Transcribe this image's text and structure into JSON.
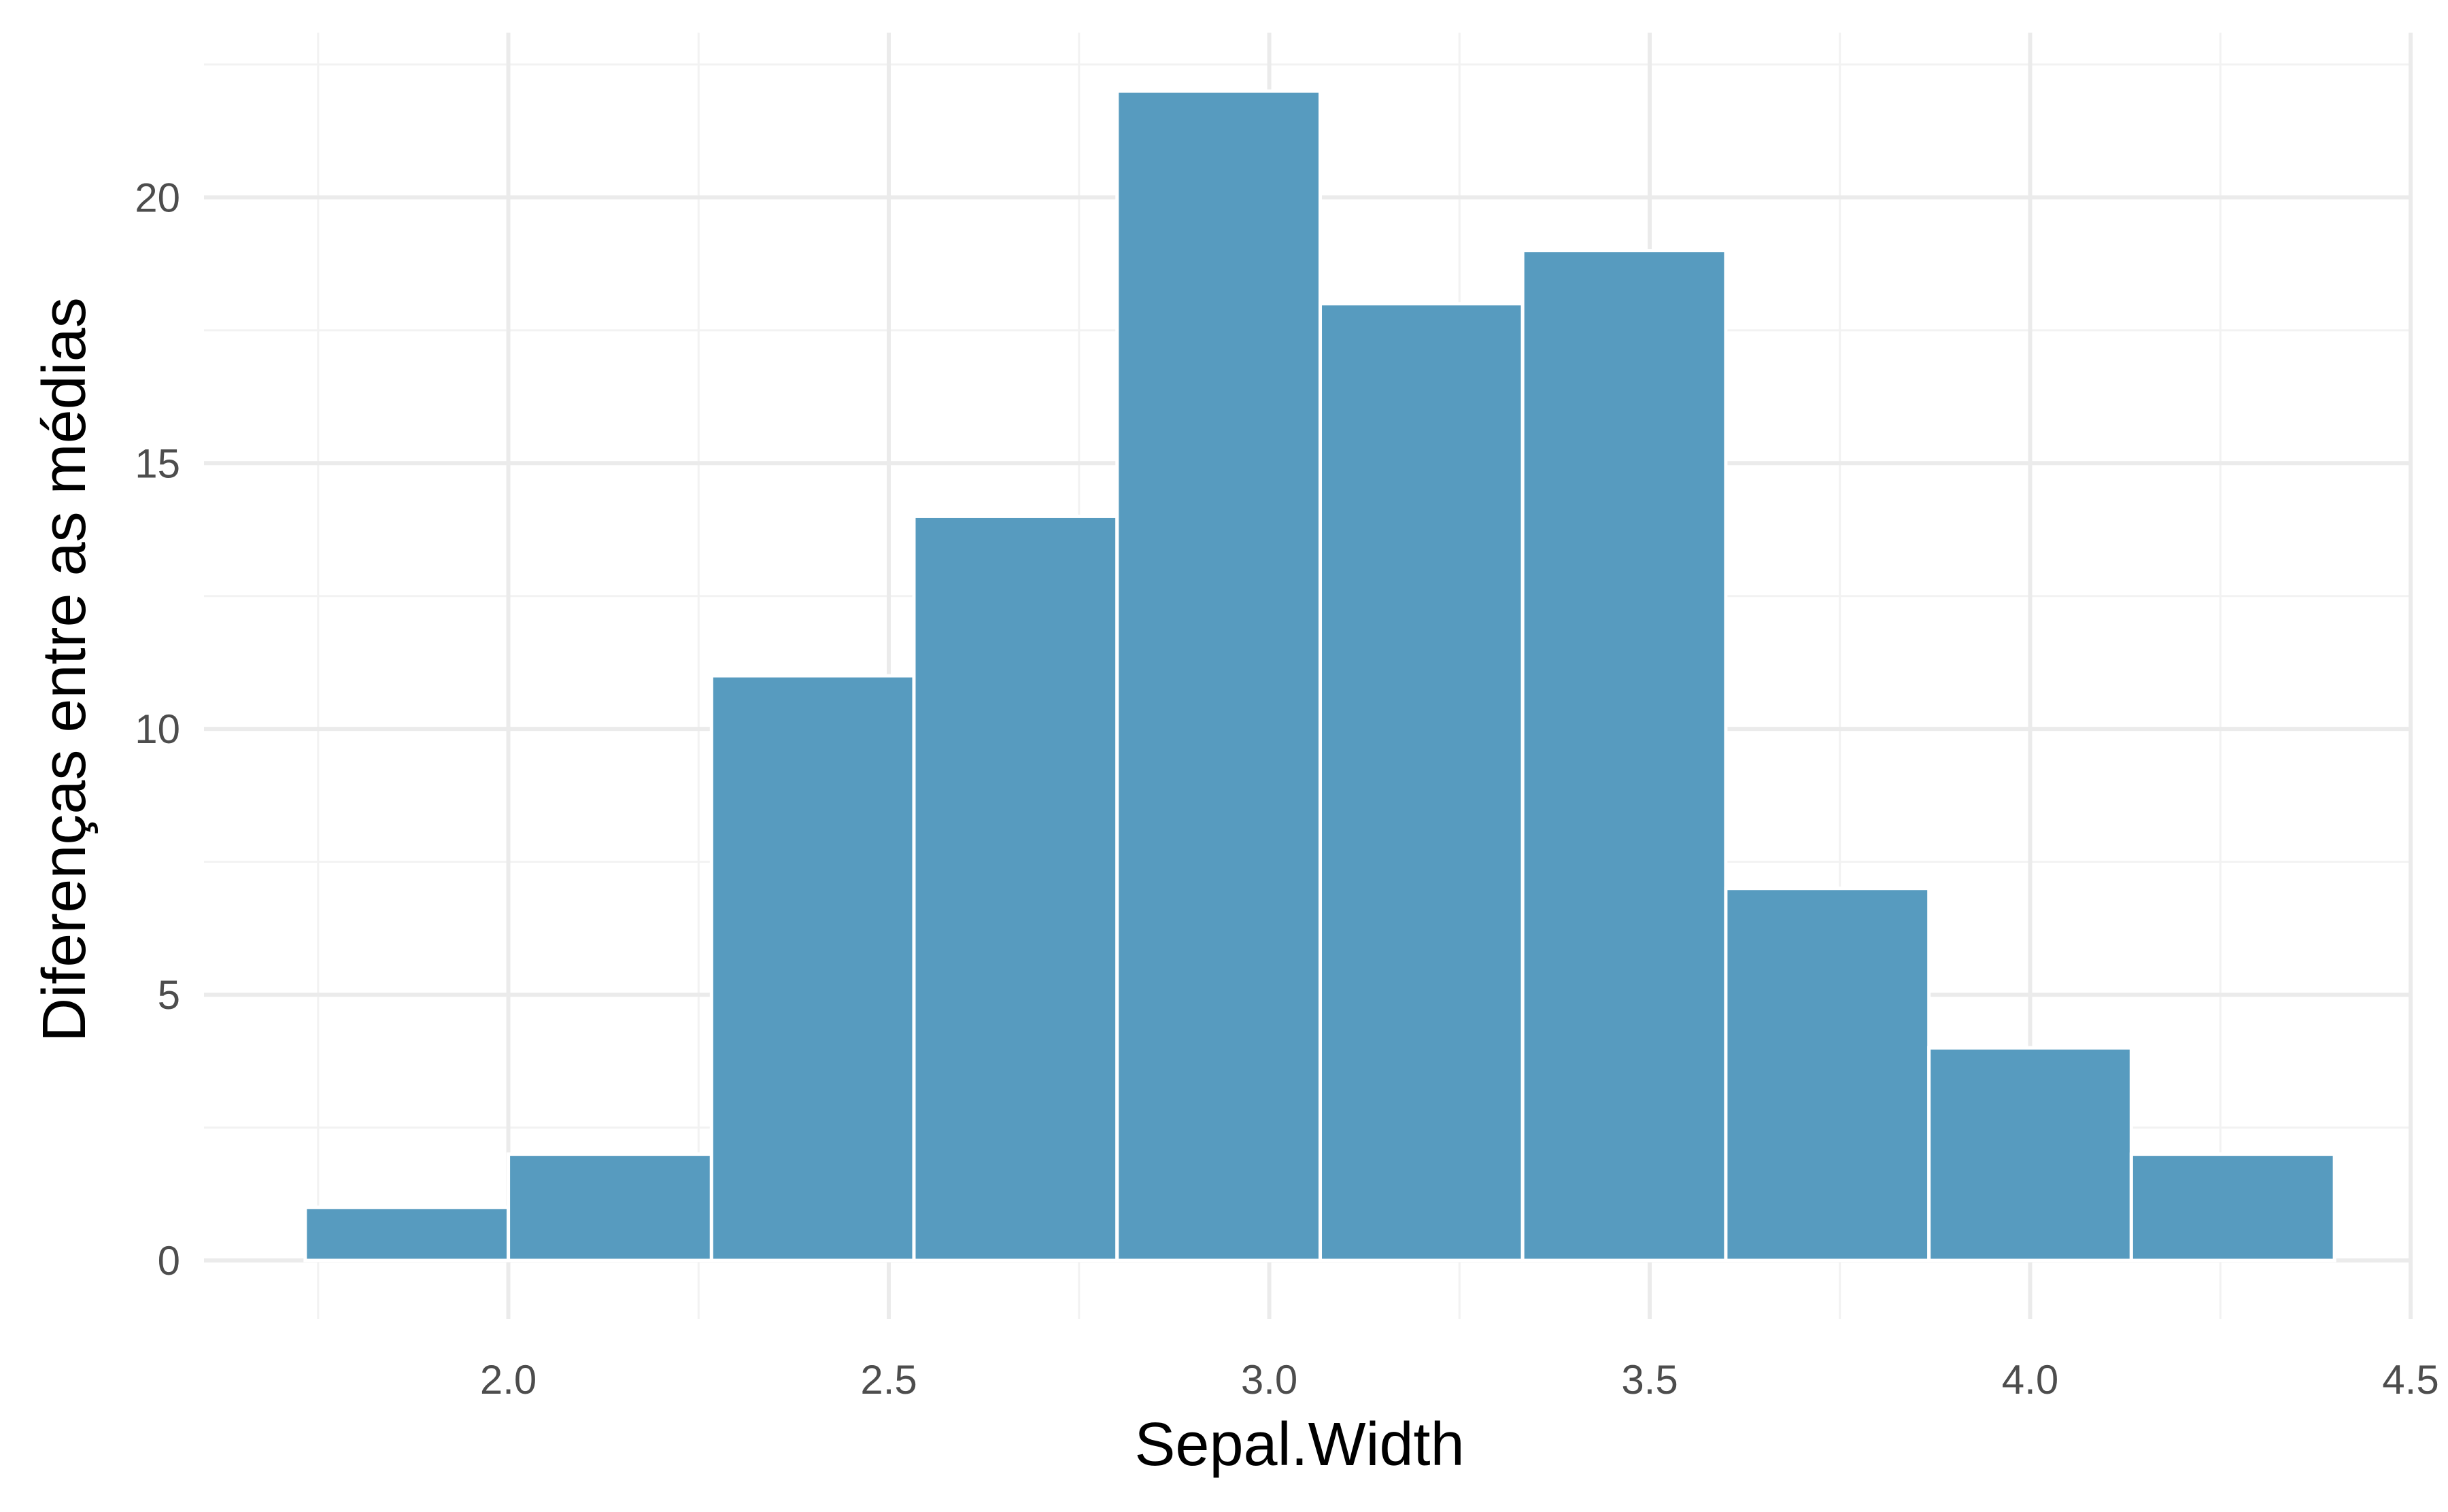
{
  "chart_data": {
    "type": "bar",
    "title": "",
    "xlabel": "Sepal.Width",
    "ylabel": "Diferenças entre as médias",
    "bin_edges": [
      1.733,
      2.0,
      2.267,
      2.533,
      2.8,
      3.067,
      3.333,
      3.6,
      3.867,
      4.133,
      4.4
    ],
    "values": [
      1,
      2,
      11,
      14,
      22,
      18,
      19,
      7,
      4,
      2
    ],
    "xlim": [
      1.6,
      4.5
    ],
    "ylim": [
      -1.1,
      23.1
    ],
    "x_ticks": [
      {
        "value": 2.0,
        "label": "2.0"
      },
      {
        "value": 2.5,
        "label": "2.5"
      },
      {
        "value": 3.0,
        "label": "3.0"
      },
      {
        "value": 3.5,
        "label": "3.5"
      },
      {
        "value": 4.0,
        "label": "4.0"
      },
      {
        "value": 4.5,
        "label": "4.5"
      }
    ],
    "x_minor_ticks": [
      1.75,
      2.25,
      2.75,
      3.25,
      3.75,
      4.25
    ],
    "y_ticks": [
      {
        "value": 0,
        "label": "0"
      },
      {
        "value": 5,
        "label": "5"
      },
      {
        "value": 10,
        "label": "10"
      },
      {
        "value": 15,
        "label": "15"
      },
      {
        "value": 20,
        "label": "20"
      }
    ],
    "y_minor_ticks": [
      2.5,
      7.5,
      12.5,
      17.5,
      22.5
    ],
    "grid": true,
    "legend": "none",
    "colors": {
      "bar_fill": "#579bbf",
      "bar_outline": "#ffffff",
      "grid": "#ebebeb",
      "background": "#ffffff"
    }
  }
}
